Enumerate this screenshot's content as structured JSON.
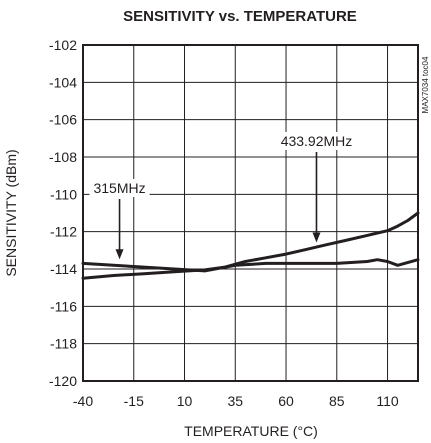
{
  "chart_data": {
    "type": "line",
    "title": "SENSITIVITY vs. TEMPERATURE",
    "xlabel": "TEMPERATURE (°C)",
    "ylabel": "SENSITIVITY (dBm)",
    "xlim": [
      -40,
      125
    ],
    "ylim": [
      -120,
      -102
    ],
    "x_ticks": [
      -40,
      -15,
      10,
      35,
      60,
      85,
      110
    ],
    "y_ticks": [
      -102,
      -104,
      -106,
      -108,
      -110,
      -112,
      -114,
      -116,
      -118,
      -120
    ],
    "grid": true,
    "side_label": "MAX7034 toc04",
    "series": [
      {
        "name": "315MHz",
        "x": [
          -40,
          -25,
          -10,
          5,
          20,
          25,
          35,
          50,
          70,
          85,
          100,
          105,
          110,
          115,
          125
        ],
        "y": [
          -113.7,
          -113.8,
          -113.9,
          -114.0,
          -114.1,
          -114.0,
          -113.8,
          -113.7,
          -113.7,
          -113.7,
          -113.6,
          -113.5,
          -113.6,
          -113.8,
          -113.5
        ]
      },
      {
        "name": "433.92MHz",
        "x": [
          -40,
          -25,
          -10,
          5,
          20,
          30,
          40,
          50,
          60,
          70,
          80,
          90,
          100,
          110,
          115,
          120,
          125
        ],
        "y": [
          -114.5,
          -114.35,
          -114.25,
          -114.15,
          -114.05,
          -113.9,
          -113.6,
          -113.4,
          -113.2,
          -112.95,
          -112.7,
          -112.45,
          -112.2,
          -111.95,
          -111.7,
          -111.4,
          -111.0
        ]
      }
    ],
    "annotations": [
      {
        "text": "315MHz",
        "series": "315MHz",
        "arrow_x": -22,
        "arrow_y": -113.8
      },
      {
        "text": "433.92MHz",
        "series": "433.92MHz",
        "arrow_x": 75,
        "arrow_y": -112.9
      }
    ]
  }
}
